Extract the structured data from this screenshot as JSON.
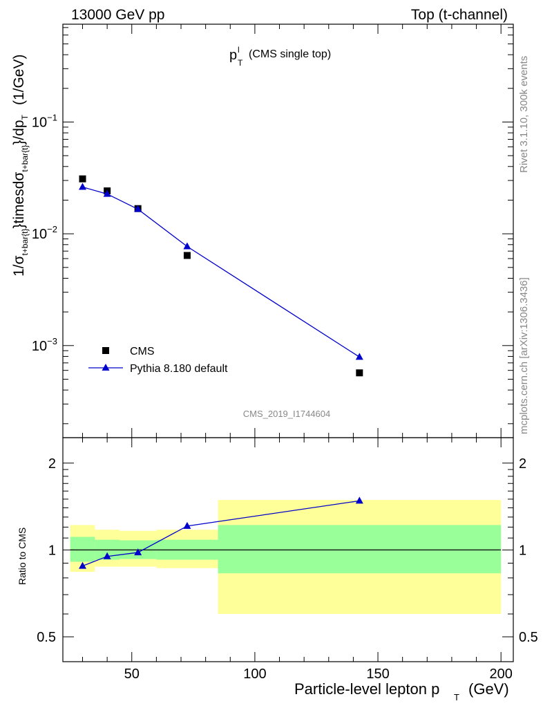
{
  "header": {
    "left": "13000 GeV pp",
    "right": "Top (t-channel)"
  },
  "plot_title": {
    "main": "p",
    "sup": "l",
    "sub": "T",
    "rest": "(CMS single top)"
  },
  "side_text": {
    "top": "Rivet 3.1.10,  300k events",
    "bottom": "mcplots.cern.ch [arXiv:1306.3436]"
  },
  "watermark": "CMS_2019_I1744604",
  "main_ylabel": {
    "a": "1/σ",
    "a_sub": "t+bar{t}",
    "b": "}timesdσ",
    "b_sub": "t+bar{t}",
    "c": "}/dp",
    "c_sub": "T",
    "d": "(1/GeV)"
  },
  "ratio_ylabel": "Ratio to CMS",
  "xlabel": {
    "main": "Particle-level lepton p",
    "sub": "T",
    "unit": "(GeV)"
  },
  "chart_data": [
    {
      "type": "scatter",
      "yscale": "log",
      "xlim": [
        22,
        205
      ],
      "ylim": [
        0.00015,
        0.75
      ],
      "yticks": [
        {
          "v": 0.1,
          "base": "10",
          "exp": "−1"
        },
        {
          "v": 0.01,
          "base": "10",
          "exp": "−2"
        },
        {
          "v": 0.001,
          "base": "10",
          "exp": "−3"
        }
      ],
      "legend_position": "bottom-left",
      "series": [
        {
          "name": "CMS",
          "color": "#000000",
          "marker": "square",
          "x": [
            30,
            40,
            52.5,
            72.5,
            142.5
          ],
          "y": [
            0.031,
            0.0242,
            0.0168,
            0.0064,
            0.00057
          ]
        },
        {
          "name": "Pythia 8.180 default",
          "color": "#0000cc",
          "marker": "triangle",
          "x": [
            30,
            40,
            52.5,
            72.5,
            142.5
          ],
          "y": [
            0.0262,
            0.0227,
            0.0166,
            0.0077,
            0.00079
          ]
        }
      ]
    },
    {
      "type": "line",
      "yscale": "log",
      "xlim": [
        22,
        205
      ],
      "ylim": [
        0.41,
        2.45
      ],
      "xticks": [
        50,
        100,
        150,
        200
      ],
      "yticks": [
        0.5,
        1,
        2
      ],
      "bands": {
        "yellow_color": "#ffff99",
        "green_color": "#99ff99",
        "bins": [
          {
            "x0": 25,
            "x1": 35,
            "y_lo": 0.84,
            "y_hi": 1.22,
            "g_lo": 0.91,
            "g_hi": 1.11
          },
          {
            "x0": 35,
            "x1": 45,
            "y_lo": 0.875,
            "y_hi": 1.175,
            "g_lo": 0.925,
            "g_hi": 1.085
          },
          {
            "x0": 45,
            "x1": 60,
            "y_lo": 0.875,
            "y_hi": 1.165,
            "g_lo": 0.93,
            "g_hi": 1.08
          },
          {
            "x0": 60,
            "x1": 85,
            "y_lo": 0.865,
            "y_hi": 1.175,
            "g_lo": 0.925,
            "g_hi": 1.085
          },
          {
            "x0": 85,
            "x1": 200,
            "y_lo": 0.6,
            "y_hi": 1.49,
            "g_lo": 0.83,
            "g_hi": 1.22
          }
        ]
      },
      "reference_line": 1,
      "series": [
        {
          "name": "Pythia 8.180 default",
          "color": "#0000cc",
          "marker": "triangle",
          "x": [
            30,
            40,
            52.5,
            72.5,
            142.5
          ],
          "y": [
            0.88,
            0.95,
            0.98,
            1.21,
            1.48
          ],
          "err": [
            0,
            0,
            0,
            0,
            0.03
          ]
        }
      ]
    }
  ]
}
